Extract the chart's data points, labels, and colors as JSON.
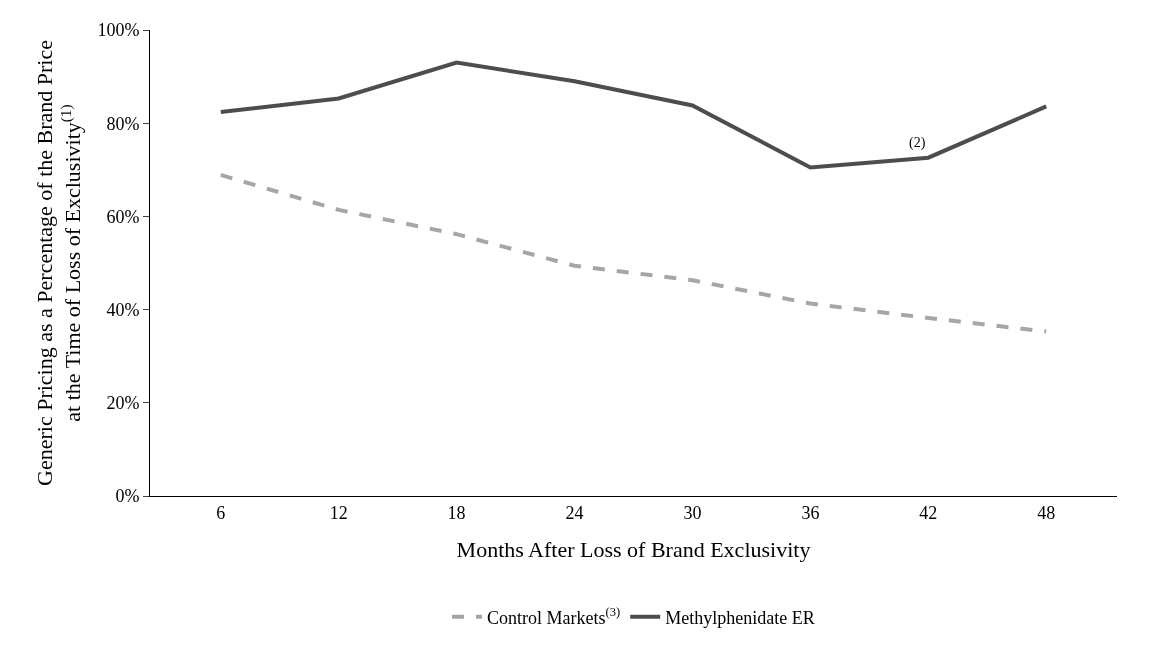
{
  "chart_data": {
    "type": "line",
    "xlabel": "Months After Loss of Brand Exclusivity",
    "ylabel": "Generic Pricing as a Percentage of the Brand Price\nat the Time of Loss of Exclusivity$^{(1)}$",
    "categories": [
      "6",
      "12",
      "18",
      "24",
      "30",
      "36",
      "42",
      "48"
    ],
    "series": [
      {
        "name": "Control Markets$^{(3)}$",
        "color": "#a6a6a8",
        "line_style": "dashed",
        "values": [
          0.689,
          0.614,
          0.562,
          0.494,
          0.463,
          0.413,
          0.382,
          0.353
        ]
      },
      {
        "name": "Methylphenidate ER",
        "color": "#4d4d4f",
        "line_style": "solid",
        "values": [
          0.824,
          0.853,
          0.93,
          0.89,
          0.838,
          0.705,
          0.726,
          0.836
        ]
      }
    ],
    "ylim": [
      0,
      1
    ],
    "yticks": [
      {
        "value": 0,
        "label": "0%"
      },
      {
        "value": 0.2,
        "label": "20%"
      },
      {
        "value": 0.4,
        "label": "40%"
      },
      {
        "value": 0.6,
        "label": "60%"
      },
      {
        "value": 0.8,
        "label": "80%"
      },
      {
        "value": 1,
        "label": "100%"
      }
    ],
    "annotations": [
      "(2)"
    ],
    "legend": "bottom",
    "marker": "none"
  }
}
